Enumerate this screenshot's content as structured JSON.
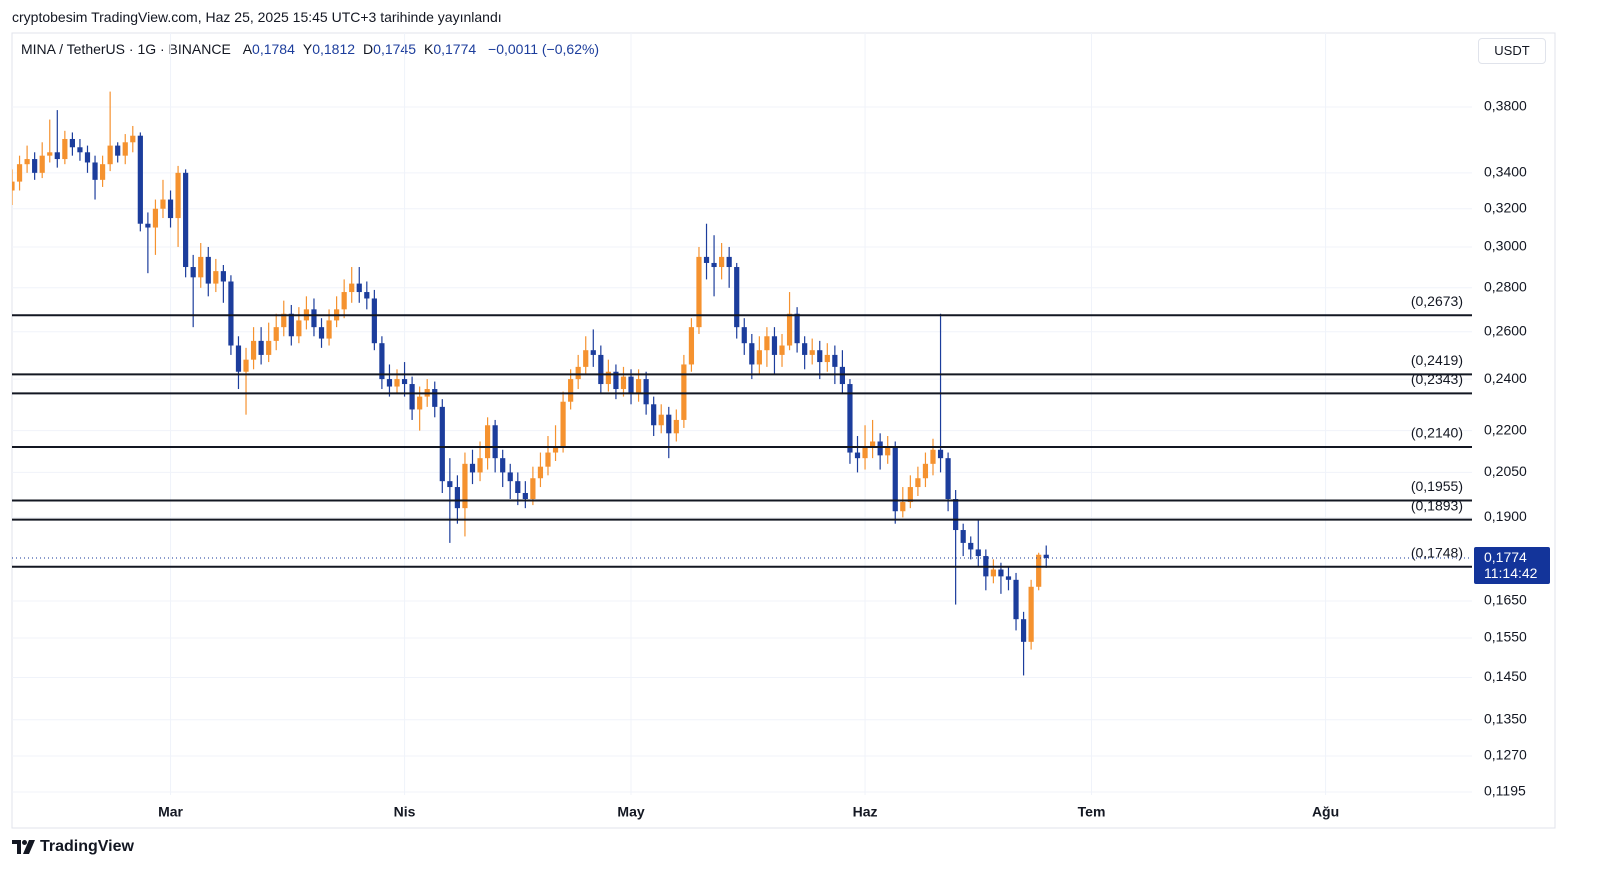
{
  "header": {
    "published": "cryptobesim TradingView.com, Haz 25, 2025 15:45 UTC+3 tarihinde yayınlandı",
    "symbol": "MINA / TetherUS · 1G · BINANCE",
    "ohlc": [
      {
        "label": "A",
        "value": "0,1784"
      },
      {
        "label": "Y",
        "value": "0,1812"
      },
      {
        "label": "D",
        "value": "0,1745"
      },
      {
        "label": "K",
        "value": "0,1774"
      }
    ],
    "change": "−0,0011 (−0,62%)"
  },
  "currency": "USDT",
  "brand": "TradingView",
  "chart_data": {
    "type": "candlestick",
    "log_scale": true,
    "grid": true,
    "up_color": "#f5922f",
    "down_color": "#1c3d9c",
    "xlim": [
      0,
      193.4
    ],
    "xticks": [
      {
        "value": 21,
        "label": "Mar"
      },
      {
        "value": 52,
        "label": "Nis"
      },
      {
        "value": 82,
        "label": "May"
      },
      {
        "value": 113,
        "label": "Haz"
      },
      {
        "value": 143,
        "label": "Tem"
      },
      {
        "value": 174,
        "label": "Ağu"
      }
    ],
    "ylim": [
      0.1189,
      0.4255
    ],
    "yticks": [
      {
        "value": 0.38,
        "label": "0,3800"
      },
      {
        "value": 0.34,
        "label": "0,3400"
      },
      {
        "value": 0.32,
        "label": "0,3200"
      },
      {
        "value": 0.3,
        "label": "0,3000"
      },
      {
        "value": 0.28,
        "label": "0,2800"
      },
      {
        "value": 0.26,
        "label": "0,2600"
      },
      {
        "value": 0.24,
        "label": "0,2400"
      },
      {
        "value": 0.22,
        "label": "0,2200"
      },
      {
        "value": 0.205,
        "label": "0,2050"
      },
      {
        "value": 0.19,
        "label": "0,1900"
      },
      {
        "value": 0.165,
        "label": "0,1650"
      },
      {
        "value": 0.155,
        "label": "0,1550"
      },
      {
        "value": 0.145,
        "label": "0,1450"
      },
      {
        "value": 0.135,
        "label": "0,1350"
      },
      {
        "value": 0.127,
        "label": "0,1270"
      },
      {
        "value": 0.1195,
        "label": "0,1195"
      }
    ],
    "open": [
      0.33,
      0.335,
      0.345,
      0.348,
      0.34,
      0.35,
      0.352,
      0.348,
      0.36,
      0.355,
      0.352,
      0.346,
      0.336,
      0.345,
      0.356,
      0.35,
      0.358,
      0.362,
      0.312,
      0.31,
      0.32,
      0.325,
      0.315,
      0.34,
      0.29,
      0.285,
      0.295,
      0.282,
      0.288,
      0.283,
      0.254,
      0.243,
      0.248,
      0.256,
      0.25,
      0.256,
      0.262,
      0.268,
      0.258,
      0.265,
      0.27,
      0.262,
      0.257,
      0.265,
      0.27,
      0.278,
      0.282,
      0.278,
      0.275,
      0.255,
      0.24,
      0.237,
      0.24,
      0.238,
      0.228,
      0.233,
      0.236,
      0.229,
      0.202,
      0.2,
      0.193,
      0.208,
      0.205,
      0.21,
      0.222,
      0.21,
      0.205,
      0.202,
      0.198,
      0.196,
      0.203,
      0.207,
      0.212,
      0.214,
      0.231,
      0.24,
      0.245,
      0.252,
      0.25,
      0.238,
      0.243,
      0.236,
      0.241,
      0.234,
      0.24,
      0.23,
      0.222,
      0.226,
      0.219,
      0.224,
      0.246,
      0.262,
      0.295,
      0.292,
      0.29,
      0.295,
      0.29,
      0.262,
      0.255,
      0.246,
      0.252,
      0.258,
      0.25,
      0.254,
      0.268,
      0.255,
      0.25,
      0.252,
      0.247,
      0.25,
      0.245,
      0.238,
      0.212,
      0.21,
      0.214,
      0.216,
      0.211,
      0.214,
      0.192,
      0.195,
      0.2,
      0.203,
      0.208,
      0.213,
      0.21,
      0.196,
      0.186,
      0.182,
      0.18,
      0.178,
      0.172,
      0.174,
      0.172,
      0.171,
      0.16,
      0.154,
      0.169,
      0.1784
    ],
    "high": [
      0.342,
      0.35,
      0.356,
      0.352,
      0.358,
      0.372,
      0.378,
      0.365,
      0.364,
      0.36,
      0.356,
      0.35,
      0.35,
      0.39,
      0.358,
      0.363,
      0.368,
      0.364,
      0.318,
      0.325,
      0.336,
      0.33,
      0.344,
      0.342,
      0.296,
      0.302,
      0.3,
      0.294,
      0.291,
      0.286,
      0.258,
      0.253,
      0.262,
      0.262,
      0.264,
      0.268,
      0.274,
      0.272,
      0.271,
      0.276,
      0.275,
      0.266,
      0.27,
      0.276,
      0.284,
      0.29,
      0.29,
      0.283,
      0.279,
      0.258,
      0.246,
      0.244,
      0.247,
      0.241,
      0.237,
      0.24,
      0.239,
      0.232,
      0.21,
      0.204,
      0.212,
      0.213,
      0.216,
      0.225,
      0.224,
      0.213,
      0.208,
      0.205,
      0.202,
      0.207,
      0.212,
      0.218,
      0.222,
      0.235,
      0.244,
      0.25,
      0.258,
      0.261,
      0.254,
      0.248,
      0.246,
      0.245,
      0.244,
      0.244,
      0.243,
      0.233,
      0.23,
      0.229,
      0.228,
      0.25,
      0.266,
      0.3,
      0.312,
      0.306,
      0.302,
      0.3,
      0.292,
      0.266,
      0.259,
      0.258,
      0.262,
      0.262,
      0.259,
      0.278,
      0.271,
      0.258,
      0.257,
      0.256,
      0.255,
      0.254,
      0.252,
      0.24,
      0.218,
      0.222,
      0.224,
      0.219,
      0.218,
      0.216,
      0.2,
      0.204,
      0.207,
      0.212,
      0.217,
      0.268,
      0.212,
      0.199,
      0.188,
      0.184,
      0.189,
      0.18,
      0.177,
      0.176,
      0.175,
      0.173,
      0.162,
      0.171,
      0.179,
      0.1812
    ],
    "low": [
      0.322,
      0.33,
      0.34,
      0.336,
      0.337,
      0.346,
      0.343,
      0.345,
      0.35,
      0.347,
      0.34,
      0.325,
      0.332,
      0.341,
      0.346,
      0.345,
      0.352,
      0.308,
      0.287,
      0.296,
      0.315,
      0.31,
      0.3,
      0.285,
      0.262,
      0.28,
      0.276,
      0.278,
      0.273,
      0.25,
      0.236,
      0.226,
      0.244,
      0.246,
      0.247,
      0.252,
      0.258,
      0.254,
      0.255,
      0.261,
      0.258,
      0.253,
      0.254,
      0.262,
      0.266,
      0.273,
      0.273,
      0.27,
      0.252,
      0.236,
      0.233,
      0.234,
      0.233,
      0.224,
      0.22,
      0.229,
      0.225,
      0.198,
      0.182,
      0.188,
      0.184,
      0.201,
      0.202,
      0.206,
      0.205,
      0.2,
      0.196,
      0.194,
      0.193,
      0.194,
      0.2,
      0.204,
      0.209,
      0.212,
      0.228,
      0.236,
      0.242,
      0.245,
      0.234,
      0.235,
      0.232,
      0.233,
      0.23,
      0.231,
      0.226,
      0.218,
      0.219,
      0.21,
      0.216,
      0.221,
      0.243,
      0.259,
      0.284,
      0.276,
      0.284,
      0.28,
      0.257,
      0.25,
      0.24,
      0.242,
      0.245,
      0.242,
      0.245,
      0.252,
      0.251,
      0.244,
      0.246,
      0.24,
      0.243,
      0.238,
      0.234,
      0.208,
      0.205,
      0.206,
      0.21,
      0.206,
      0.208,
      0.188,
      0.19,
      0.193,
      0.197,
      0.2,
      0.204,
      0.205,
      0.192,
      0.164,
      0.178,
      0.177,
      0.175,
      0.168,
      0.17,
      0.167,
      0.168,
      0.157,
      0.1455,
      0.152,
      0.168,
      0.1745
    ],
    "close": [
      0.335,
      0.345,
      0.348,
      0.34,
      0.35,
      0.352,
      0.348,
      0.36,
      0.355,
      0.352,
      0.346,
      0.336,
      0.345,
      0.356,
      0.35,
      0.358,
      0.362,
      0.312,
      0.31,
      0.32,
      0.325,
      0.315,
      0.34,
      0.29,
      0.285,
      0.295,
      0.282,
      0.288,
      0.283,
      0.254,
      0.243,
      0.248,
      0.256,
      0.25,
      0.256,
      0.262,
      0.268,
      0.258,
      0.265,
      0.27,
      0.262,
      0.257,
      0.265,
      0.27,
      0.278,
      0.282,
      0.278,
      0.275,
      0.255,
      0.24,
      0.237,
      0.24,
      0.238,
      0.228,
      0.233,
      0.236,
      0.229,
      0.202,
      0.2,
      0.193,
      0.208,
      0.205,
      0.21,
      0.222,
      0.21,
      0.205,
      0.202,
      0.198,
      0.196,
      0.203,
      0.207,
      0.212,
      0.214,
      0.231,
      0.24,
      0.245,
      0.252,
      0.25,
      0.238,
      0.243,
      0.236,
      0.241,
      0.234,
      0.24,
      0.23,
      0.222,
      0.226,
      0.219,
      0.224,
      0.246,
      0.262,
      0.295,
      0.292,
      0.29,
      0.295,
      0.29,
      0.262,
      0.255,
      0.246,
      0.252,
      0.258,
      0.25,
      0.254,
      0.268,
      0.255,
      0.25,
      0.252,
      0.247,
      0.25,
      0.245,
      0.238,
      0.212,
      0.21,
      0.214,
      0.216,
      0.211,
      0.214,
      0.192,
      0.195,
      0.2,
      0.203,
      0.208,
      0.213,
      0.21,
      0.196,
      0.186,
      0.182,
      0.18,
      0.178,
      0.172,
      0.174,
      0.172,
      0.171,
      0.16,
      0.154,
      0.169,
      0.1784,
      0.1774
    ],
    "levels": {
      "color": "#131722",
      "values": [
        0.2673,
        0.2419,
        0.2343,
        0.214,
        0.1955,
        0.1893,
        0.1748
      ],
      "value_labels": [
        "(0,2673)",
        "(0,2419)",
        "(0,2343)",
        "(0,2140)",
        "(0,1955)",
        "(0,1893)",
        "(0,1748)"
      ]
    },
    "last_price": {
      "value": 0.1774,
      "label": "0,1774",
      "countdown": "11:14:42",
      "color": "#13349a"
    }
  }
}
